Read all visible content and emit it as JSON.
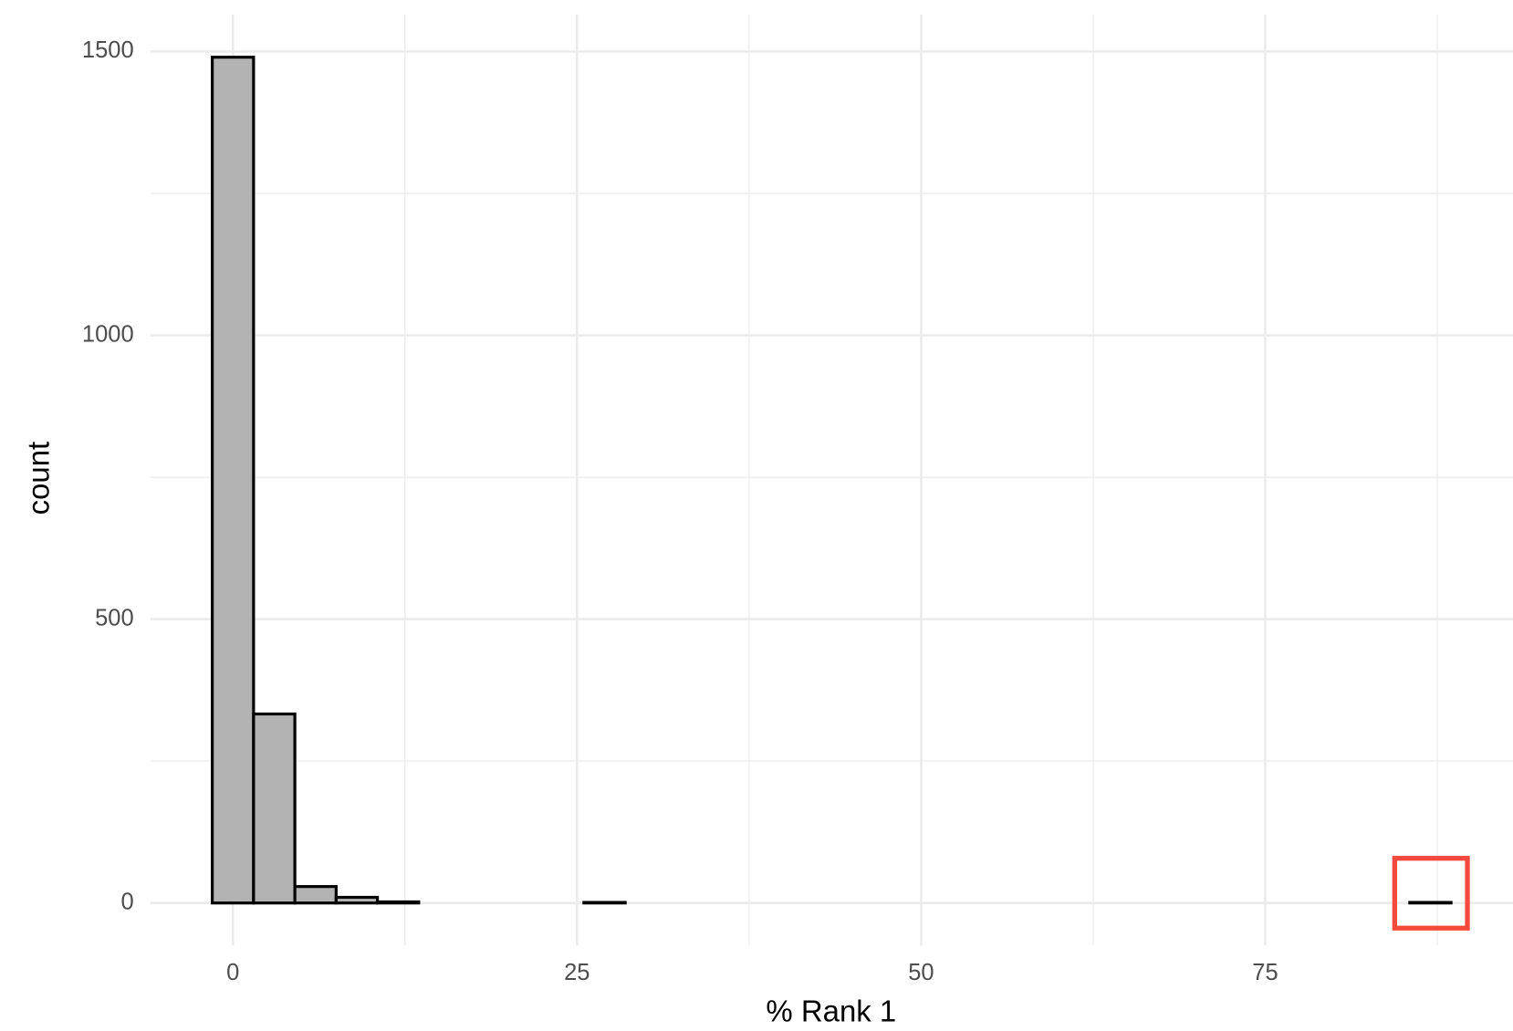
{
  "chart_data": {
    "type": "histogram",
    "xlabel": "% Rank 1",
    "ylabel": "count",
    "bins": [
      -1.5,
      1.5,
      4.5,
      7.5,
      10.5,
      13.5,
      16.5,
      19.5,
      22.5,
      25.5,
      28.5,
      31.5,
      34.5,
      37.5,
      40.5,
      43.5,
      46.5,
      49.5,
      52.5,
      55.5,
      58.5,
      61.5,
      64.5,
      67.5,
      70.5,
      73.5,
      76.5,
      79.5,
      82.5,
      85.5,
      88.5
    ],
    "values": [
      1490,
      333,
      29,
      10,
      2,
      0,
      0,
      0,
      0,
      1,
      0,
      0,
      0,
      0,
      0,
      0,
      0,
      0,
      0,
      0,
      0,
      0,
      0,
      0,
      0,
      0,
      0,
      0,
      0,
      1
    ],
    "color": "#b3b3b3",
    "edgecolor": "#000000",
    "xlim": [
      -6,
      93
    ],
    "ylim": [
      -75,
      1565
    ],
    "xticks": [
      0,
      25,
      50,
      75
    ],
    "yticks": [
      0,
      500,
      1000,
      1500
    ],
    "x_minor_grid": [
      12.5,
      37.5,
      62.5,
      87.5
    ],
    "y_minor_grid": [
      250,
      750,
      1250
    ],
    "grid": true
  }
}
